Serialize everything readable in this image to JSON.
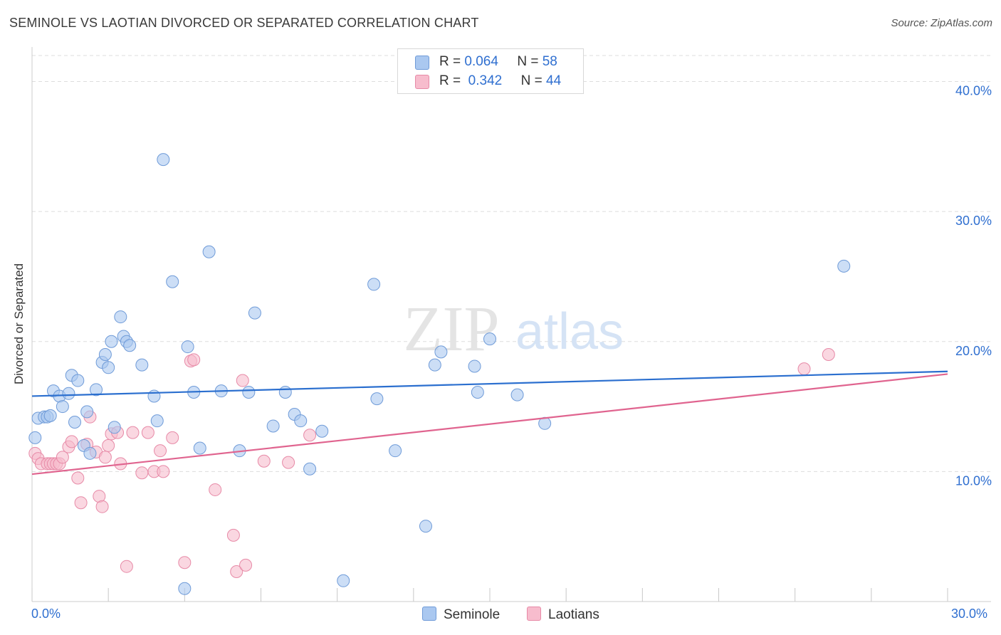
{
  "title": "SEMINOLE VS LAOTIAN DIVORCED OR SEPARATED CORRELATION CHART",
  "source": "Source: ZipAtlas.com",
  "watermark": {
    "zip": "ZIP",
    "atlas": "atlas"
  },
  "legend_top": {
    "rows": [
      {
        "r_label": "R =",
        "r_value": "0.064",
        "n_label": "N =",
        "n_value": "58"
      },
      {
        "r_label": "R =",
        "r_value": "0.342",
        "n_label": "N =",
        "n_value": "44"
      }
    ]
  },
  "legend_bottom": {
    "seminole": "Seminole",
    "laotians": "Laotians"
  },
  "x_tick_labels": {
    "left": "0.0%",
    "right": "30.0%"
  },
  "colors": {
    "seminole_fill": "#aac8f0",
    "seminole_stroke": "#6f9bd8",
    "seminole_line": "#2b6fcf",
    "laotian_fill": "#f7bccd",
    "laotian_stroke": "#e78aa7",
    "laotian_line": "#e0648f",
    "grid": "#dddddd",
    "tick_text": "#2f6fd0"
  },
  "chart_data": {
    "type": "scatter",
    "title": "SEMINOLE VS LAOTIAN DIVORCED OR SEPARATED CORRELATION CHART",
    "xlabel": "",
    "ylabel": "Divorced or Separated",
    "xlim": [
      0,
      30
    ],
    "ylim": [
      0,
      42
    ],
    "y_ticks": [
      10,
      20,
      30,
      40
    ],
    "y_tick_labels": [
      "10.0%",
      "20.0%",
      "30.0%",
      "40.0%"
    ],
    "grid": true,
    "legend_placement": "top-center and bottom",
    "series": [
      {
        "name": "Seminole",
        "r": 0.064,
        "n": 58,
        "trend": {
          "x": [
            0,
            30
          ],
          "y": [
            15.8,
            17.7
          ]
        },
        "points": [
          [
            0.1,
            12.6
          ],
          [
            0.2,
            14.1
          ],
          [
            0.4,
            14.2
          ],
          [
            0.5,
            14.2
          ],
          [
            0.6,
            14.3
          ],
          [
            0.7,
            16.2
          ],
          [
            0.9,
            15.8
          ],
          [
            1.0,
            15.0
          ],
          [
            1.2,
            16.0
          ],
          [
            1.3,
            17.4
          ],
          [
            1.4,
            13.8
          ],
          [
            1.5,
            17.0
          ],
          [
            1.7,
            12.0
          ],
          [
            1.8,
            14.6
          ],
          [
            1.9,
            11.4
          ],
          [
            2.1,
            16.3
          ],
          [
            2.3,
            18.4
          ],
          [
            2.4,
            19.0
          ],
          [
            2.5,
            18.0
          ],
          [
            2.6,
            20.0
          ],
          [
            2.7,
            13.4
          ],
          [
            2.9,
            21.9
          ],
          [
            3.0,
            20.4
          ],
          [
            3.1,
            20.0
          ],
          [
            3.2,
            19.7
          ],
          [
            3.6,
            18.2
          ],
          [
            4.0,
            15.8
          ],
          [
            4.1,
            13.9
          ],
          [
            4.3,
            34.0
          ],
          [
            4.6,
            24.6
          ],
          [
            5.0,
            1.0
          ],
          [
            5.1,
            19.6
          ],
          [
            5.3,
            16.1
          ],
          [
            5.5,
            11.8
          ],
          [
            5.8,
            26.9
          ],
          [
            6.2,
            16.2
          ],
          [
            6.8,
            11.6
          ],
          [
            7.1,
            16.1
          ],
          [
            7.3,
            22.2
          ],
          [
            7.9,
            13.5
          ],
          [
            8.3,
            16.1
          ],
          [
            8.6,
            14.4
          ],
          [
            8.8,
            13.9
          ],
          [
            9.1,
            10.2
          ],
          [
            9.5,
            13.1
          ],
          [
            10.2,
            1.6
          ],
          [
            11.2,
            24.4
          ],
          [
            11.3,
            15.6
          ],
          [
            11.9,
            11.6
          ],
          [
            12.9,
            5.8
          ],
          [
            13.2,
            18.2
          ],
          [
            13.4,
            19.2
          ],
          [
            14.5,
            18.1
          ],
          [
            14.6,
            16.1
          ],
          [
            15.0,
            20.2
          ],
          [
            15.9,
            15.9
          ],
          [
            16.8,
            13.7
          ],
          [
            26.6,
            25.8
          ]
        ]
      },
      {
        "name": "Laotians",
        "r": 0.342,
        "n": 44,
        "trend": {
          "x": [
            0,
            30
          ],
          "y": [
            9.8,
            17.5
          ]
        },
        "points": [
          [
            0.1,
            11.4
          ],
          [
            0.2,
            11.0
          ],
          [
            0.3,
            10.6
          ],
          [
            0.5,
            10.6
          ],
          [
            0.6,
            10.6
          ],
          [
            0.7,
            10.6
          ],
          [
            0.8,
            10.6
          ],
          [
            0.9,
            10.6
          ],
          [
            1.0,
            11.1
          ],
          [
            1.2,
            11.9
          ],
          [
            1.3,
            12.3
          ],
          [
            1.5,
            9.5
          ],
          [
            1.6,
            7.6
          ],
          [
            1.8,
            12.1
          ],
          [
            1.9,
            14.2
          ],
          [
            2.1,
            11.5
          ],
          [
            2.2,
            8.1
          ],
          [
            2.3,
            7.3
          ],
          [
            2.4,
            11.1
          ],
          [
            2.5,
            12.0
          ],
          [
            2.6,
            12.9
          ],
          [
            2.8,
            13.0
          ],
          [
            2.9,
            10.6
          ],
          [
            3.1,
            2.7
          ],
          [
            3.3,
            13.0
          ],
          [
            3.6,
            9.9
          ],
          [
            3.8,
            13.0
          ],
          [
            4.0,
            10.0
          ],
          [
            4.2,
            11.6
          ],
          [
            4.3,
            10.0
          ],
          [
            4.6,
            12.6
          ],
          [
            5.0,
            3.0
          ],
          [
            5.2,
            18.5
          ],
          [
            5.3,
            18.6
          ],
          [
            6.0,
            8.6
          ],
          [
            6.6,
            5.1
          ],
          [
            6.7,
            2.3
          ],
          [
            6.9,
            17.0
          ],
          [
            7.0,
            2.8
          ],
          [
            7.6,
            10.8
          ],
          [
            8.4,
            10.7
          ],
          [
            9.1,
            12.8
          ],
          [
            25.3,
            17.9
          ],
          [
            26.1,
            19.0
          ]
        ]
      }
    ]
  }
}
